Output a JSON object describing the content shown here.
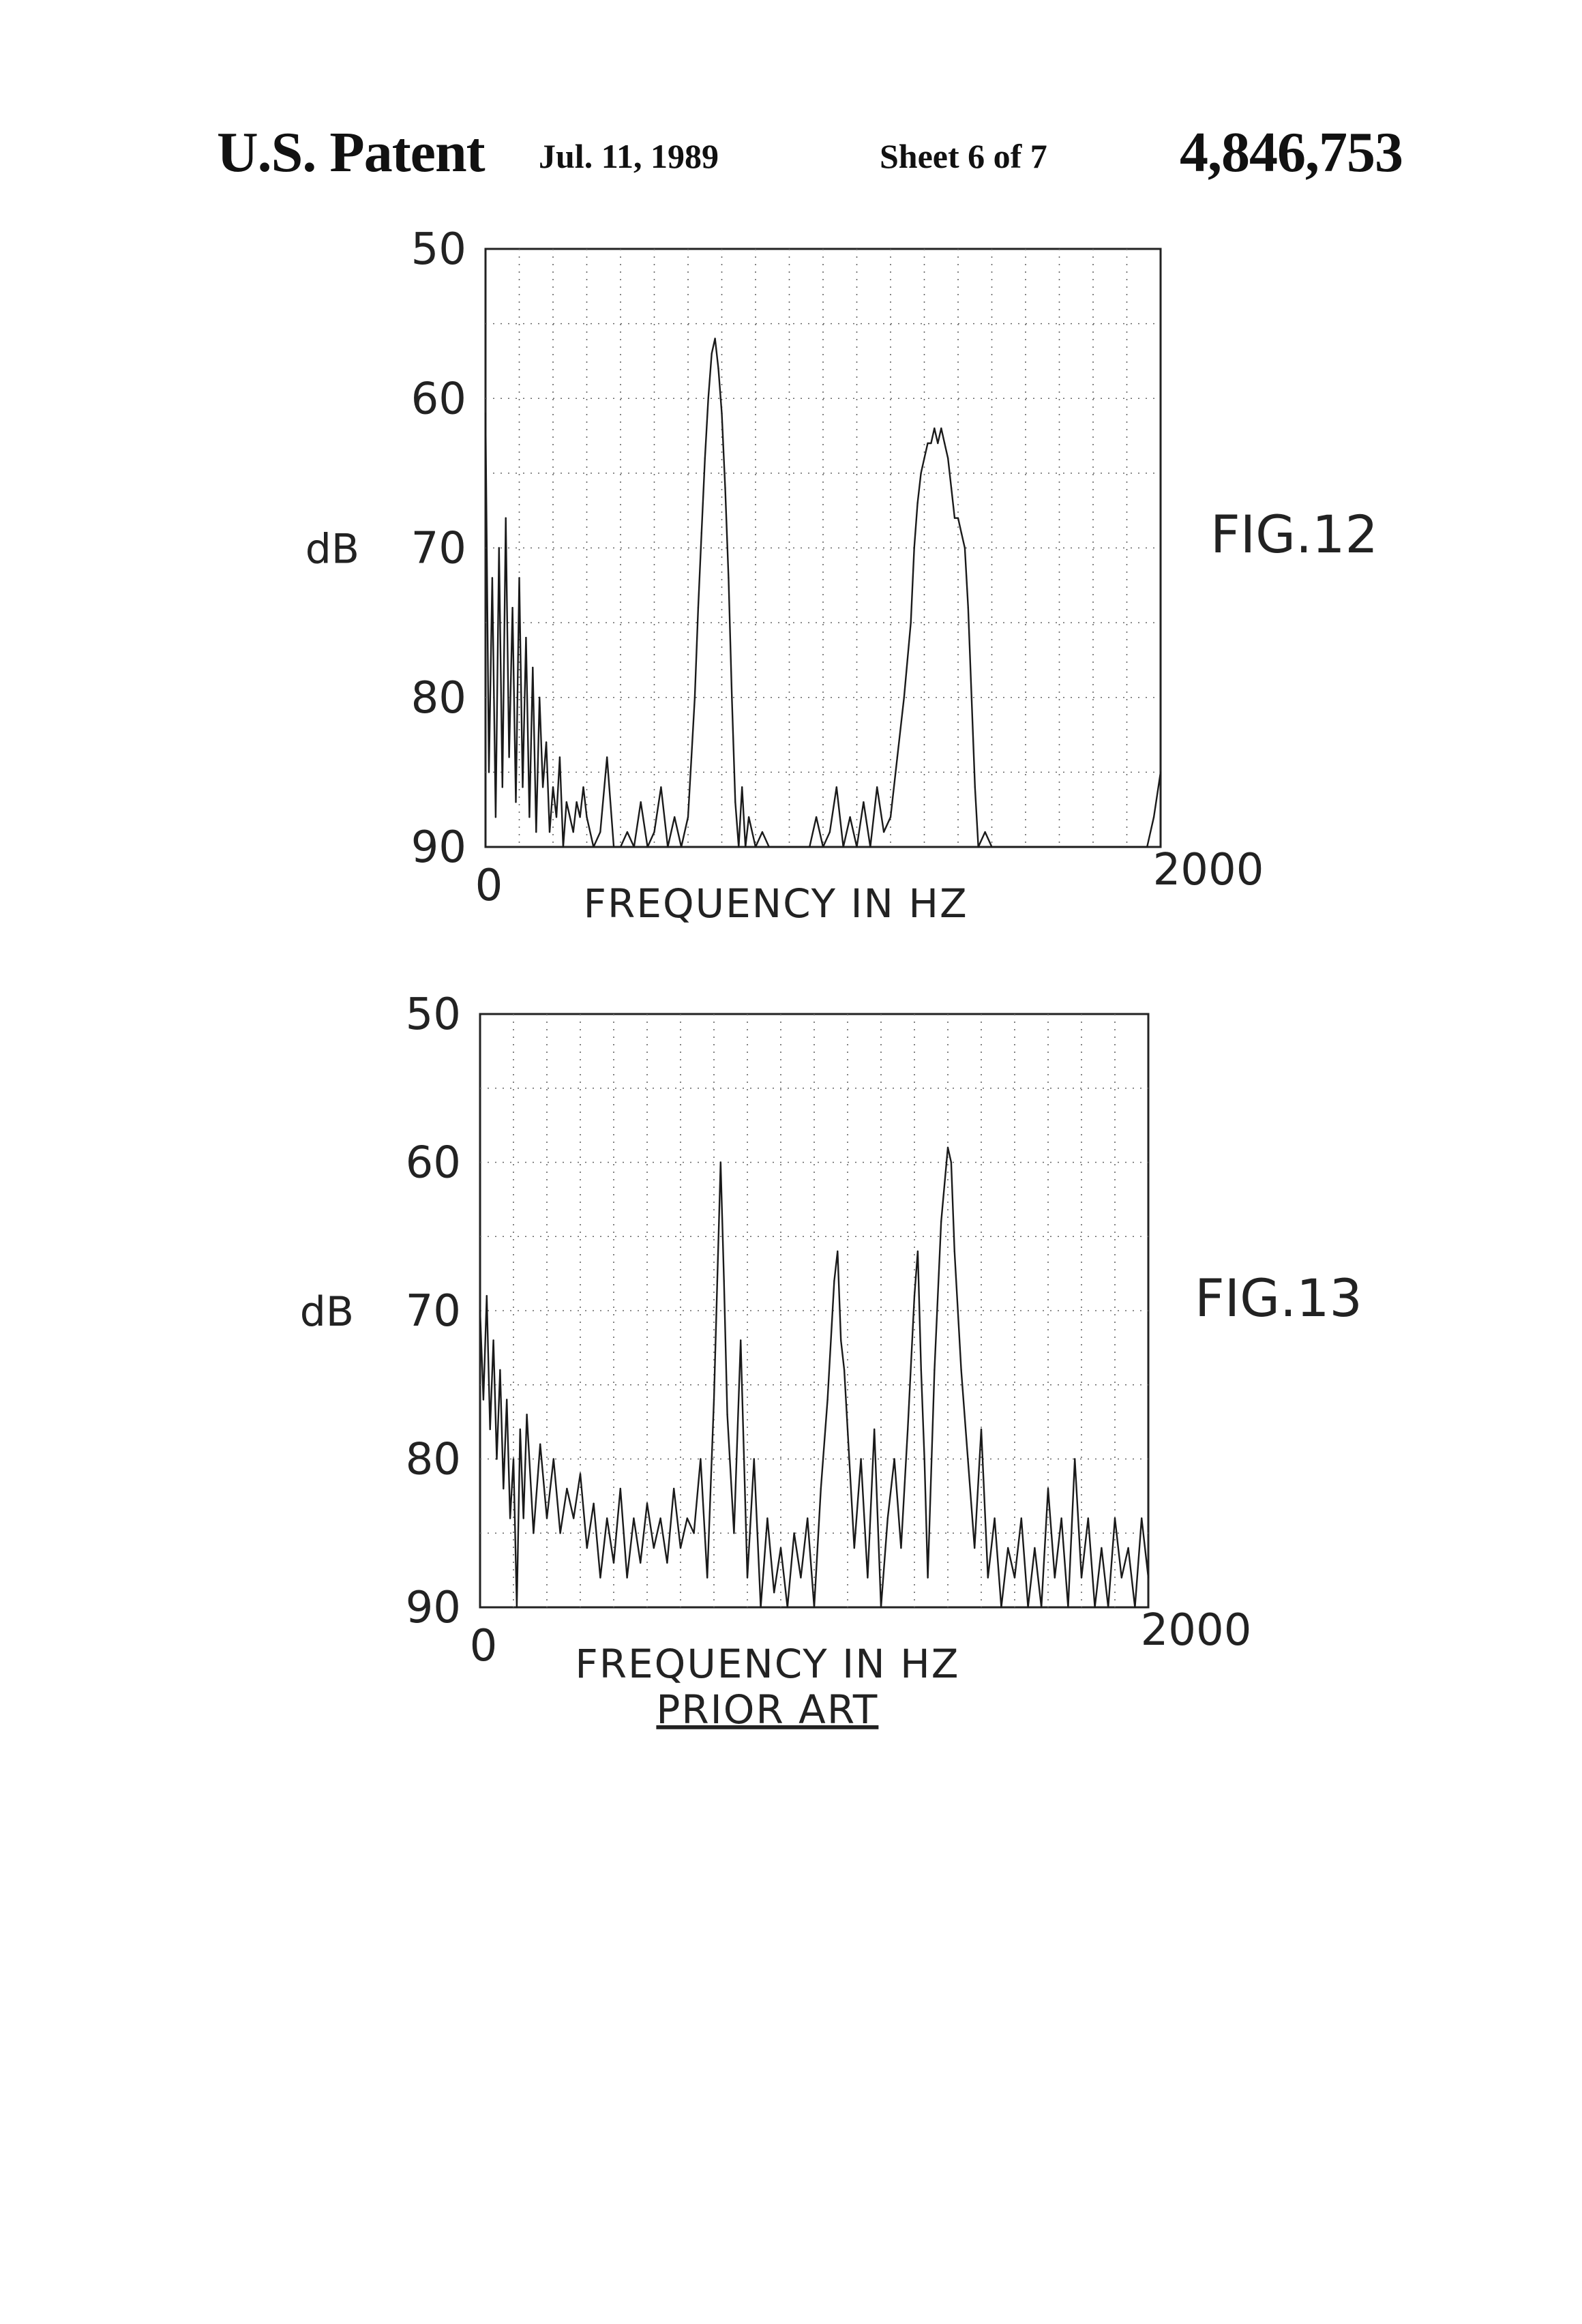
{
  "header": {
    "publication": "U.S. Patent",
    "date": "Jul. 11, 1989",
    "sheet": "Sheet 6 of 7",
    "patent_number": "4,846,753"
  },
  "chart_data": [
    {
      "type": "line",
      "title": "FIG.12",
      "xlabel": "FREQUENCY IN HZ",
      "ylabel": "dB",
      "xlim": [
        0,
        2000
      ],
      "ylim": [
        90,
        50
      ],
      "y_inverted": true,
      "yticks": [
        "50",
        "60",
        "70",
        "80",
        "90"
      ],
      "xticks": [
        "0",
        "2000"
      ],
      "grid": true,
      "series": [
        {
          "x": [
            0,
            10,
            20,
            30,
            40,
            50,
            60,
            70,
            80,
            90,
            100,
            110,
            120,
            130,
            140,
            150,
            160,
            170,
            180,
            190,
            200,
            210,
            220,
            230,
            240,
            250,
            260,
            270,
            280,
            290,
            300,
            320,
            340,
            360,
            380,
            400,
            420,
            440,
            460,
            480,
            500,
            520,
            540,
            560,
            580,
            600,
            610,
            620,
            630,
            640,
            650,
            660,
            670,
            680,
            690,
            700,
            710,
            720,
            730,
            740,
            750,
            760,
            770,
            780,
            800,
            820,
            840,
            860,
            880,
            900,
            920,
            940,
            960,
            980,
            1000,
            1020,
            1040,
            1060,
            1080,
            1100,
            1120,
            1140,
            1160,
            1180,
            1200,
            1220,
            1240,
            1260,
            1270,
            1280,
            1290,
            1300,
            1310,
            1320,
            1330,
            1340,
            1350,
            1360,
            1370,
            1380,
            1390,
            1400,
            1410,
            1420,
            1430,
            1440,
            1450,
            1460,
            1480,
            1500,
            1520,
            1540,
            1560,
            1580,
            1600,
            1620,
            1640,
            1660,
            1680,
            1700,
            1720,
            1740,
            1760,
            1780,
            1800,
            1820,
            1840,
            1860,
            1880,
            1900,
            1920,
            1940,
            1960,
            1980,
            2000
          ],
          "y": [
            61,
            85,
            72,
            88,
            70,
            86,
            68,
            84,
            74,
            87,
            72,
            86,
            76,
            88,
            78,
            89,
            80,
            86,
            83,
            89,
            86,
            88,
            84,
            90,
            87,
            88,
            89,
            87,
            88,
            86,
            88,
            90,
            89,
            84,
            90,
            90,
            89,
            90,
            87,
            90,
            89,
            86,
            90,
            88,
            90,
            88,
            84,
            80,
            74,
            69,
            64,
            60,
            57,
            56,
            58,
            61,
            66,
            72,
            80,
            87,
            90,
            86,
            90,
            88,
            90,
            89,
            90,
            90,
            90,
            90,
            90,
            90,
            90,
            88,
            90,
            89,
            86,
            90,
            88,
            90,
            87,
            90,
            86,
            89,
            88,
            84,
            80,
            75,
            70,
            67,
            65,
            64,
            63,
            63,
            62,
            63,
            62,
            63,
            64,
            66,
            68,
            68,
            69,
            70,
            74,
            80,
            86,
            90,
            89,
            90,
            90,
            90,
            90,
            90,
            90,
            90,
            90,
            90,
            90,
            90,
            90,
            90,
            90,
            90,
            90,
            90,
            90,
            90,
            90,
            90,
            90,
            90,
            90,
            88,
            85
          ]
        }
      ]
    },
    {
      "type": "line",
      "title": "FIG.13",
      "subtitle": "PRIOR ART",
      "xlabel": "FREQUENCY IN HZ",
      "ylabel": "dB",
      "xlim": [
        0,
        2000
      ],
      "ylim": [
        90,
        50
      ],
      "y_inverted": true,
      "yticks": [
        "50",
        "60",
        "70",
        "80",
        "90"
      ],
      "xticks": [
        "0",
        "2000"
      ],
      "grid": true,
      "series": [
        {
          "x": [
            0,
            10,
            20,
            30,
            40,
            50,
            60,
            70,
            80,
            90,
            100,
            110,
            120,
            130,
            140,
            160,
            180,
            200,
            220,
            240,
            260,
            280,
            300,
            320,
            340,
            360,
            380,
            400,
            420,
            440,
            460,
            480,
            500,
            520,
            540,
            560,
            580,
            600,
            620,
            640,
            660,
            680,
            700,
            710,
            720,
            730,
            740,
            760,
            780,
            800,
            820,
            840,
            860,
            880,
            900,
            920,
            940,
            960,
            980,
            1000,
            1020,
            1040,
            1060,
            1070,
            1080,
            1090,
            1100,
            1120,
            1140,
            1160,
            1180,
            1200,
            1220,
            1240,
            1260,
            1280,
            1300,
            1310,
            1320,
            1330,
            1340,
            1360,
            1380,
            1400,
            1410,
            1420,
            1430,
            1440,
            1460,
            1480,
            1500,
            1520,
            1540,
            1560,
            1580,
            1600,
            1620,
            1640,
            1660,
            1680,
            1700,
            1720,
            1740,
            1760,
            1780,
            1800,
            1820,
            1840,
            1860,
            1880,
            1900,
            1920,
            1940,
            1960,
            1980,
            2000
          ],
          "y": [
            70,
            76,
            69,
            78,
            72,
            80,
            74,
            82,
            76,
            84,
            80,
            90,
            78,
            84,
            77,
            85,
            79,
            84,
            80,
            85,
            82,
            84,
            81,
            86,
            83,
            88,
            84,
            87,
            82,
            88,
            84,
            87,
            83,
            86,
            84,
            87,
            82,
            86,
            84,
            85,
            80,
            88,
            76,
            68,
            60,
            68,
            77,
            85,
            72,
            88,
            80,
            90,
            84,
            89,
            86,
            90,
            85,
            88,
            84,
            90,
            82,
            76,
            68,
            66,
            72,
            74,
            78,
            86,
            80,
            88,
            78,
            90,
            84,
            80,
            86,
            78,
            69,
            66,
            74,
            80,
            88,
            74,
            64,
            59,
            60,
            66,
            70,
            74,
            80,
            86,
            78,
            88,
            84,
            90,
            86,
            88,
            84,
            90,
            86,
            90,
            82,
            88,
            84,
            90,
            80,
            88,
            84,
            90,
            86,
            90,
            84,
            88,
            86,
            90,
            84,
            88
          ]
        }
      ]
    }
  ]
}
